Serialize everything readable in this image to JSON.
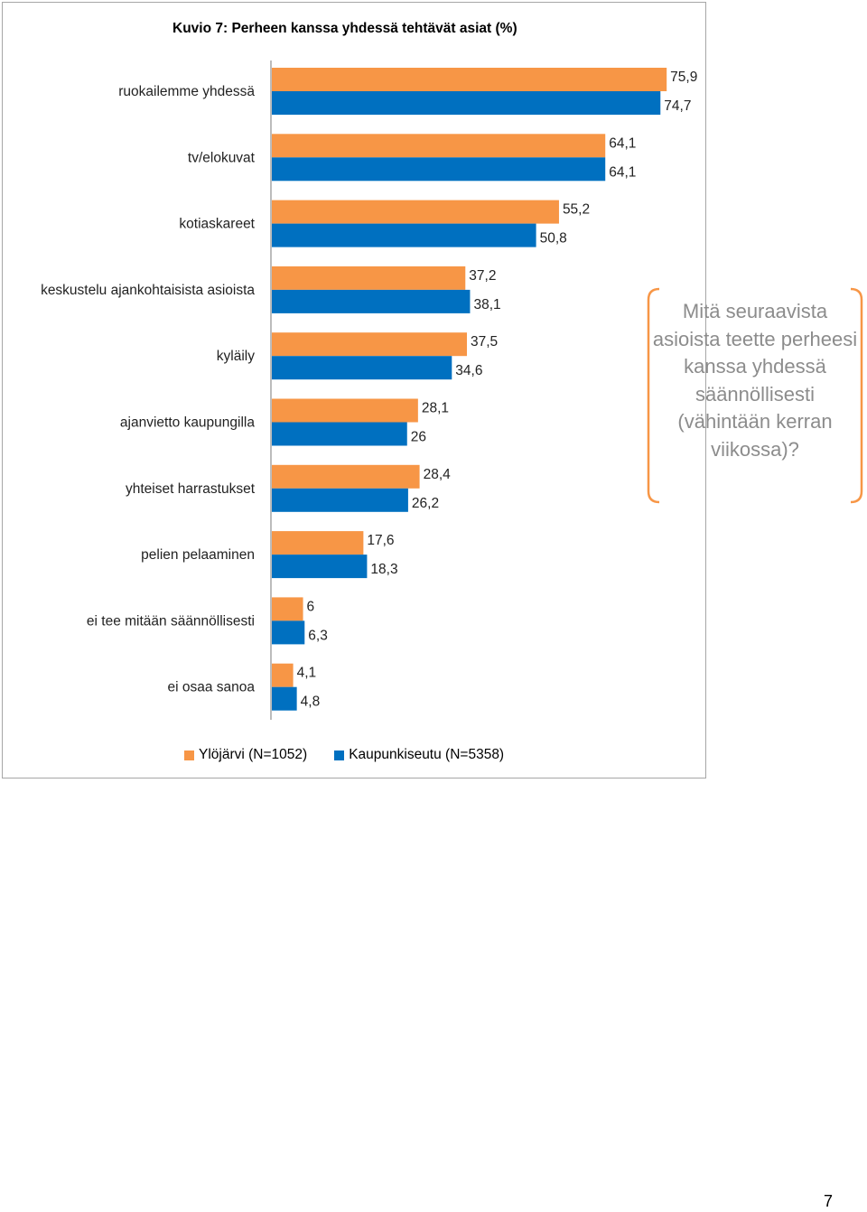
{
  "chart_data": {
    "type": "bar",
    "orientation": "horizontal",
    "title": "Kuvio 7: Perheen kanssa yhdessä tehtävät asiat (%)",
    "categories": [
      "ruokailemme yhdessä",
      "tv/elokuvat",
      "kotiaskareet",
      "keskustelu ajankohtaisista asioista",
      "kyläily",
      "ajanvietto kaupungilla",
      "yhteiset harrastukset",
      "pelien pelaaminen",
      "ei tee mitään säännöllisesti",
      "ei osaa sanoa"
    ],
    "series": [
      {
        "name": "Ylöjärvi (N=1052)",
        "color": "#f79646",
        "values": [
          75.9,
          64.1,
          55.2,
          37.2,
          37.5,
          28.1,
          28.4,
          17.6,
          6,
          4.1
        ],
        "value_labels": [
          "75,9",
          "64,1",
          "55,2",
          "37,2",
          "37,5",
          "28,1",
          "28,4",
          "17,6",
          "6",
          "4,1"
        ]
      },
      {
        "name": "Kaupunkiseutu (N=5358)",
        "color": "#0070c0",
        "values": [
          74.7,
          64.1,
          50.8,
          38.1,
          34.6,
          26,
          26.2,
          18.3,
          6.3,
          4.8
        ],
        "value_labels": [
          "74,7",
          "64,1",
          "50,8",
          "38,1",
          "34,6",
          "26",
          "26,2",
          "18,3",
          "6,3",
          "4,8"
        ]
      }
    ],
    "xlim": [
      0,
      80
    ],
    "grid": false,
    "legend": "bottom"
  },
  "callout": {
    "text": "Mitä seuraavista asioista teette perheesi kanssa yhdessä säännöllisesti (vähintään kerran viikossa)?",
    "border_color": "#f79646",
    "text_color": "#8c8c8c"
  },
  "page_number": "7"
}
